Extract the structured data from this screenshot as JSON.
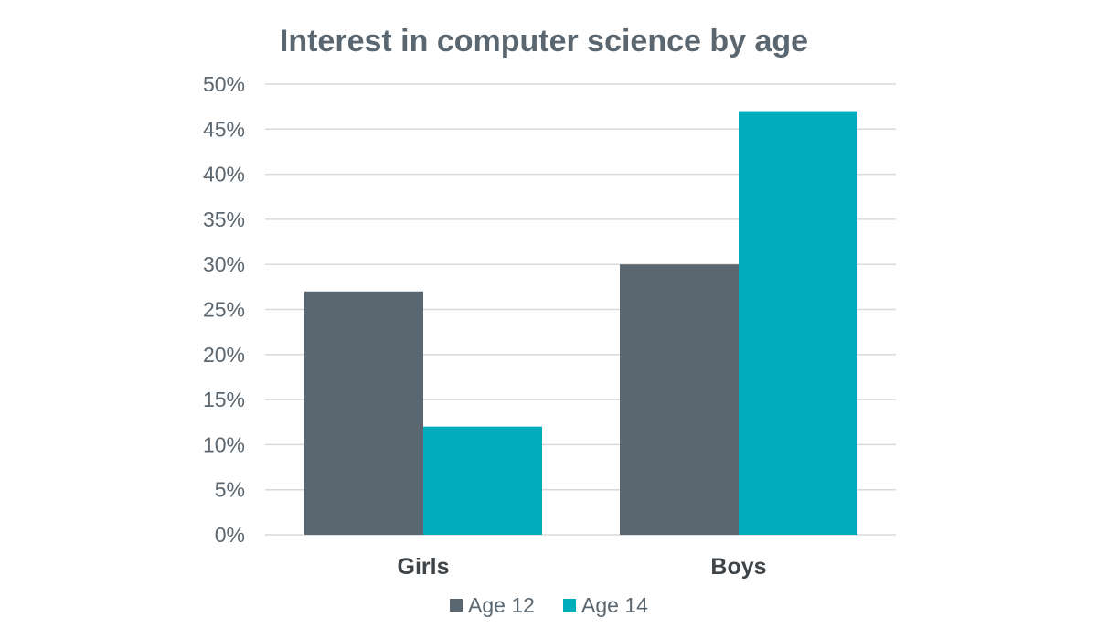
{
  "chart_data": {
    "type": "bar",
    "title": "Interest in computer science by age",
    "xlabel": "",
    "ylabel": "",
    "categories": [
      "Girls",
      "Boys"
    ],
    "series": [
      {
        "name": "Age 12",
        "values": [
          27,
          30
        ],
        "color": "#5b6770"
      },
      {
        "name": "Age 14",
        "values": [
          12,
          47
        ],
        "color": "#00adbb"
      }
    ],
    "ylim": [
      0,
      50
    ],
    "y_ticks": [
      0,
      5,
      10,
      15,
      20,
      25,
      30,
      35,
      40,
      45,
      50
    ],
    "y_tick_labels": [
      "0%",
      "5%",
      "10%",
      "15%",
      "20%",
      "25%",
      "30%",
      "35%",
      "40%",
      "45%",
      "50%"
    ],
    "grid": true,
    "legend_position": "bottom"
  }
}
